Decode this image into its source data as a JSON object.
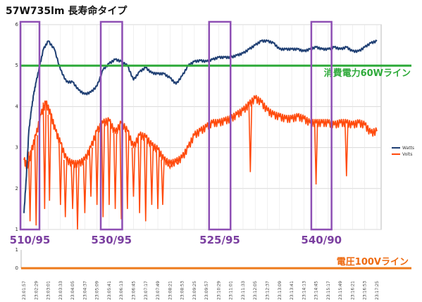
{
  "chart_data": {
    "type": "line",
    "title": "57W735lm 長寿命タイプ",
    "ylim": [
      1,
      6
    ],
    "yticks": [
      "1",
      "2",
      "3",
      "4",
      "5",
      "6"
    ],
    "bottom_ylim": [
      0,
      1
    ],
    "bottom_yticks": [
      "0",
      "1"
    ],
    "x_tick_labels": [
      "23:01:57",
      "23:02:29",
      "23:03:01",
      "23:03:33",
      "23:04:05",
      "23:04:37",
      "23:05:09",
      "23:05:41",
      "23:06:13",
      "23:06:45",
      "23:07:17",
      "23:07:49",
      "23:08:21",
      "23:08:53",
      "23:09:25",
      "23:09:57",
      "23:10:29",
      "23:11:01",
      "23:11:33",
      "23:12:05",
      "23:12:37",
      "23:13:09",
      "23:13:41",
      "23:14:13",
      "23:14:45",
      "23:15:17",
      "23:15:49",
      "23:16:21",
      "23:16:53",
      "23:17:25"
    ],
    "series": [
      {
        "name": "Watts",
        "color": "#1f3f73",
        "x": [
          0,
          0.2,
          0.4,
          0.6,
          0.8,
          1,
          1.3,
          1.6,
          2,
          2.5,
          3,
          3.5,
          4,
          4.5,
          5,
          5.5,
          6,
          6.5,
          7,
          7.5,
          8,
          8.5,
          9,
          9.5,
          10,
          10.5,
          11,
          11.5,
          12,
          12.5,
          13,
          13.5,
          14,
          14.5,
          15,
          15.5,
          16,
          16.5,
          17,
          17.5,
          18,
          18.5,
          19,
          19.5,
          20,
          20.5,
          21,
          21.5,
          22,
          22.5,
          23,
          23.5,
          24,
          24.5,
          25,
          25.5,
          26,
          26.5,
          27,
          27.5,
          28,
          28.5,
          29
        ],
        "values": [
          1.4,
          2.3,
          3.4,
          3.9,
          4.3,
          4.6,
          5.0,
          5.4,
          5.6,
          5.4,
          4.9,
          4.6,
          4.6,
          4.4,
          4.3,
          4.35,
          4.5,
          4.9,
          5.05,
          5.15,
          5.1,
          5.0,
          4.65,
          4.85,
          4.95,
          4.82,
          4.8,
          4.8,
          4.7,
          4.55,
          4.75,
          5.0,
          5.1,
          5.12,
          5.1,
          5.15,
          5.2,
          5.2,
          5.2,
          5.25,
          5.3,
          5.4,
          5.5,
          5.6,
          5.6,
          5.55,
          5.4,
          5.4,
          5.4,
          5.4,
          5.35,
          5.4,
          5.45,
          5.4,
          5.4,
          5.45,
          5.4,
          5.45,
          5.35,
          5.35,
          5.45,
          5.55,
          5.6
        ]
      },
      {
        "name": "Volts",
        "color": "#ff4a0c",
        "x": [
          0,
          0.3,
          0.6,
          1,
          1.4,
          1.8,
          2.2,
          2.6,
          3,
          3.5,
          4,
          4.5,
          5,
          5.5,
          6,
          6.5,
          7,
          7.5,
          8,
          8.5,
          9,
          9.5,
          10,
          10.5,
          11,
          11.5,
          12,
          12.5,
          13,
          13.5,
          14,
          14.5,
          15,
          15.5,
          16,
          16.5,
          17,
          17.5,
          18,
          18.5,
          19,
          19.5,
          20,
          20.5,
          21,
          21.5,
          22,
          22.5,
          23,
          23.5,
          24,
          24.5,
          25,
          25.5,
          26,
          26.5,
          27,
          27.5,
          28,
          28.5,
          29
        ],
        "values": [
          2.7,
          2.5,
          2.9,
          3.3,
          3.8,
          4.1,
          3.8,
          3.4,
          3.1,
          2.7,
          2.6,
          2.6,
          2.7,
          3.0,
          3.4,
          3.6,
          3.65,
          3.35,
          3.6,
          3.4,
          3.0,
          3.3,
          3.25,
          3.05,
          2.95,
          2.7,
          2.6,
          2.65,
          2.75,
          3.0,
          3.3,
          3.4,
          3.5,
          3.6,
          3.6,
          3.65,
          3.7,
          3.8,
          3.9,
          4.05,
          4.2,
          4.1,
          3.9,
          3.8,
          3.75,
          3.7,
          3.7,
          3.75,
          3.7,
          3.6,
          3.6,
          3.6,
          3.6,
          3.55,
          3.6,
          3.6,
          3.55,
          3.6,
          3.55,
          3.35,
          3.4
        ]
      }
    ],
    "volt_dips": [
      {
        "x": 0.5,
        "y": 1.2
      },
      {
        "x": 1.0,
        "y": 1.1
      },
      {
        "x": 1.7,
        "y": 1.5
      },
      {
        "x": 2.1,
        "y": 1.7
      },
      {
        "x": 3.0,
        "y": 1.6
      },
      {
        "x": 3.4,
        "y": 1.3
      },
      {
        "x": 4.0,
        "y": 1.5
      },
      {
        "x": 4.4,
        "y": 1.0
      },
      {
        "x": 5.0,
        "y": 1.4
      },
      {
        "x": 5.5,
        "y": 1.8
      },
      {
        "x": 6.0,
        "y": 1.6
      },
      {
        "x": 6.5,
        "y": 1.3
      },
      {
        "x": 7.0,
        "y": 1.6
      },
      {
        "x": 7.5,
        "y": 1.5
      },
      {
        "x": 8.0,
        "y": 1.25
      },
      {
        "x": 8.5,
        "y": 1.5
      },
      {
        "x": 9.0,
        "y": 1.8
      },
      {
        "x": 9.5,
        "y": 1.4
      },
      {
        "x": 10.0,
        "y": 1.2
      },
      {
        "x": 10.5,
        "y": 1.6
      },
      {
        "x": 11.0,
        "y": 1.5
      },
      {
        "x": 11.4,
        "y": 1.6
      },
      {
        "x": 12.0,
        "y": 2.5
      },
      {
        "x": 12.6,
        "y": 2.6
      },
      {
        "x": 18.6,
        "y": 2.4
      },
      {
        "x": 24.0,
        "y": 2.1
      },
      {
        "x": 26.5,
        "y": 2.3
      }
    ],
    "reference_lines": [
      {
        "label": "消費電力60Wライン",
        "value": 5.0,
        "color": "#2eaa3a"
      },
      {
        "label": "電圧100Vライン",
        "value": 0,
        "color": "#ee7a1a"
      }
    ],
    "annotation_boxes": [
      {
        "label": "510/95",
        "x_start": 0,
        "x_end": 1.1
      },
      {
        "label": "530/95",
        "x_start": 6.6,
        "x_end": 7.9
      },
      {
        "label": "525/95",
        "x_start": 15.5,
        "x_end": 16.8
      },
      {
        "label": "540/90",
        "x_start": 23.9,
        "x_end": 25.1
      }
    ],
    "legend": [
      "Watts",
      "Volts"
    ],
    "legend_position": "right",
    "grid": true
  }
}
